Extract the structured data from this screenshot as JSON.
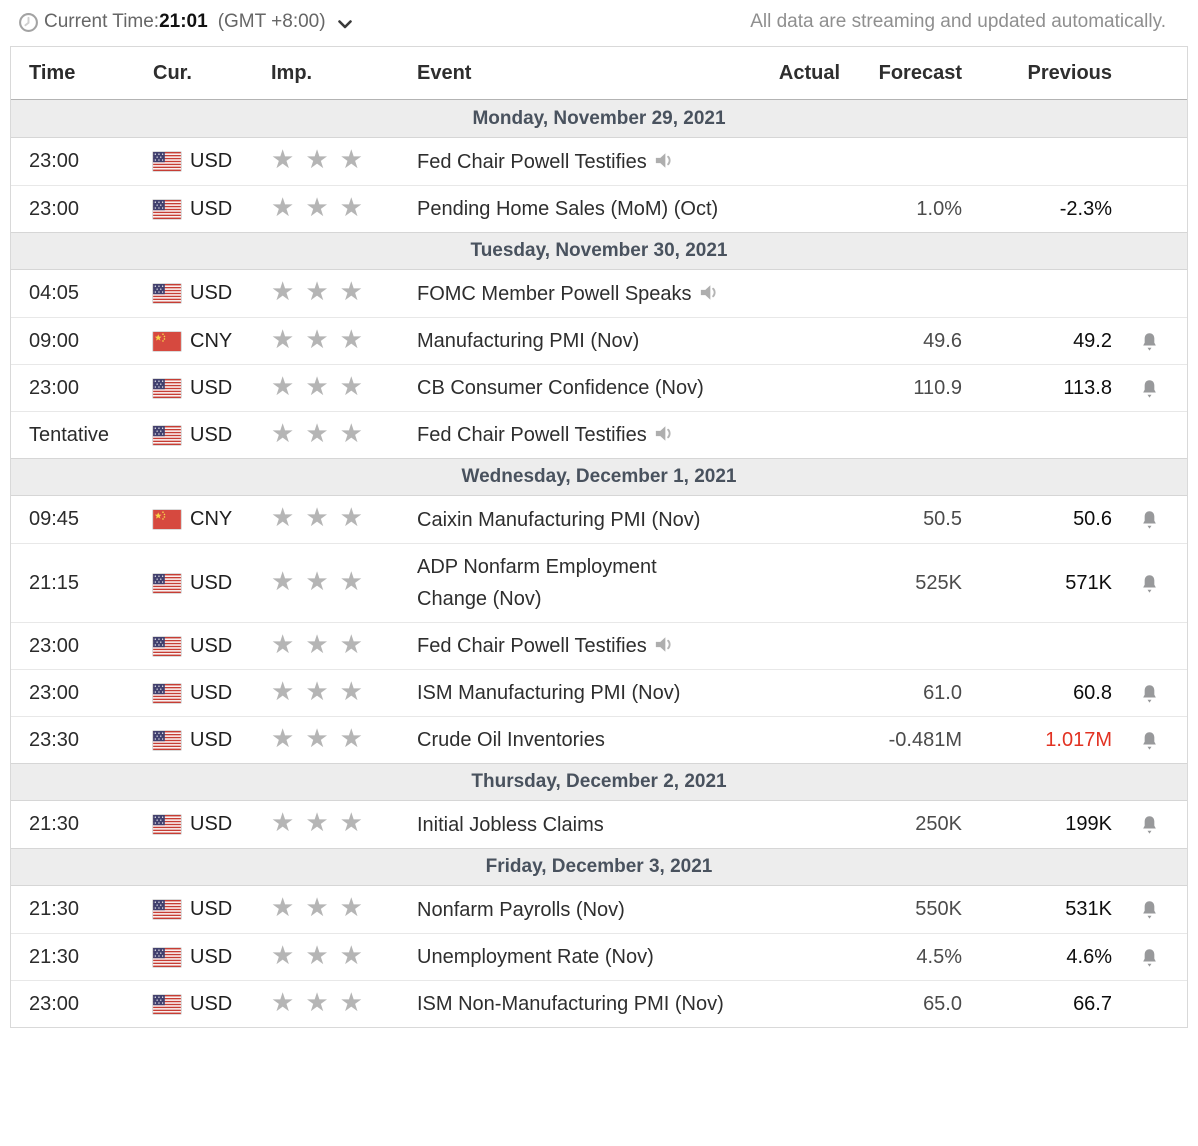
{
  "topbar": {
    "current_time_label": "Current Time:",
    "current_time_value": "21:01",
    "timezone": "(GMT +8:00)",
    "streaming_note": "All data are streaming and updated automatically."
  },
  "icons": {
    "clock": "clock-icon",
    "timezone_dropdown": "chevron-down-icon",
    "importance": "star-icon",
    "speech": "speaker-icon",
    "alert": "bell-icon",
    "flags": [
      "us-flag-icon",
      "cn-flag-icon"
    ]
  },
  "colors": {
    "negative_red": "#e23222",
    "star_gray": "#b5b5b5",
    "day_header_bg": "#ededed",
    "day_header_text": "#49525e"
  },
  "table": {
    "columns": [
      "Time",
      "Cur.",
      "Imp.",
      "Event",
      "Actual",
      "Forecast",
      "Previous"
    ],
    "sections": [
      {
        "date": "Monday, November 29, 2021",
        "rows": [
          {
            "time": "23:00",
            "currency": "USD",
            "flag": "US",
            "importance": 3,
            "event": "Fed Chair Powell Testifies",
            "speech": true,
            "actual": "",
            "forecast": "",
            "previous": "",
            "previous_negative": false,
            "bell": false
          },
          {
            "time": "23:00",
            "currency": "USD",
            "flag": "US",
            "importance": 3,
            "event": "Pending Home Sales (MoM) (Oct)",
            "speech": false,
            "actual": "",
            "forecast": "1.0%",
            "previous": "-2.3%",
            "previous_negative": false,
            "bell": false
          }
        ]
      },
      {
        "date": "Tuesday, November 30, 2021",
        "rows": [
          {
            "time": "04:05",
            "currency": "USD",
            "flag": "US",
            "importance": 3,
            "event": "FOMC Member Powell Speaks",
            "speech": true,
            "actual": "",
            "forecast": "",
            "previous": "",
            "previous_negative": false,
            "bell": false
          },
          {
            "time": "09:00",
            "currency": "CNY",
            "flag": "CN",
            "importance": 3,
            "event": "Manufacturing PMI (Nov)",
            "speech": false,
            "actual": "",
            "forecast": "49.6",
            "previous": "49.2",
            "previous_negative": false,
            "bell": true
          },
          {
            "time": "23:00",
            "currency": "USD",
            "flag": "US",
            "importance": 3,
            "event": "CB Consumer Confidence (Nov)",
            "speech": false,
            "actual": "",
            "forecast": "110.9",
            "previous": "113.8",
            "previous_negative": false,
            "bell": true
          },
          {
            "time": "Tentative",
            "currency": "USD",
            "flag": "US",
            "importance": 3,
            "event": "Fed Chair Powell Testifies",
            "speech": true,
            "actual": "",
            "forecast": "",
            "previous": "",
            "previous_negative": false,
            "bell": false
          }
        ]
      },
      {
        "date": "Wednesday, December 1, 2021",
        "rows": [
          {
            "time": "09:45",
            "currency": "CNY",
            "flag": "CN",
            "importance": 3,
            "event": "Caixin Manufacturing PMI (Nov)",
            "speech": false,
            "actual": "",
            "forecast": "50.5",
            "previous": "50.6",
            "previous_negative": false,
            "bell": true
          },
          {
            "time": "21:15",
            "currency": "USD",
            "flag": "US",
            "importance": 3,
            "event": "ADP Nonfarm Employment Change (Nov)",
            "speech": false,
            "actual": "",
            "forecast": "525K",
            "previous": "571K",
            "previous_negative": false,
            "bell": true
          },
          {
            "time": "23:00",
            "currency": "USD",
            "flag": "US",
            "importance": 3,
            "event": "Fed Chair Powell Testifies",
            "speech": true,
            "actual": "",
            "forecast": "",
            "previous": "",
            "previous_negative": false,
            "bell": false
          },
          {
            "time": "23:00",
            "currency": "USD",
            "flag": "US",
            "importance": 3,
            "event": "ISM Manufacturing PMI (Nov)",
            "speech": false,
            "actual": "",
            "forecast": "61.0",
            "previous": "60.8",
            "previous_negative": false,
            "bell": true
          },
          {
            "time": "23:30",
            "currency": "USD",
            "flag": "US",
            "importance": 3,
            "event": "Crude Oil Inventories",
            "speech": false,
            "actual": "",
            "forecast": "-0.481M",
            "previous": "1.017M",
            "previous_negative": true,
            "bell": true
          }
        ]
      },
      {
        "date": "Thursday, December 2, 2021",
        "rows": [
          {
            "time": "21:30",
            "currency": "USD",
            "flag": "US",
            "importance": 3,
            "event": "Initial Jobless Claims",
            "speech": false,
            "actual": "",
            "forecast": "250K",
            "previous": "199K",
            "previous_negative": false,
            "bell": true
          }
        ]
      },
      {
        "date": "Friday, December 3, 2021",
        "rows": [
          {
            "time": "21:30",
            "currency": "USD",
            "flag": "US",
            "importance": 3,
            "event": "Nonfarm Payrolls (Nov)",
            "speech": false,
            "actual": "",
            "forecast": "550K",
            "previous": "531K",
            "previous_negative": false,
            "bell": true
          },
          {
            "time": "21:30",
            "currency": "USD",
            "flag": "US",
            "importance": 3,
            "event": "Unemployment Rate (Nov)",
            "speech": false,
            "actual": "",
            "forecast": "4.5%",
            "previous": "4.6%",
            "previous_negative": false,
            "bell": true
          },
          {
            "time": "23:00",
            "currency": "USD",
            "flag": "US",
            "importance": 3,
            "event": "ISM Non-Manufacturing PMI (Nov)",
            "speech": false,
            "actual": "",
            "forecast": "65.0",
            "previous": "66.7",
            "previous_negative": false,
            "bell": false
          }
        ]
      }
    ]
  }
}
